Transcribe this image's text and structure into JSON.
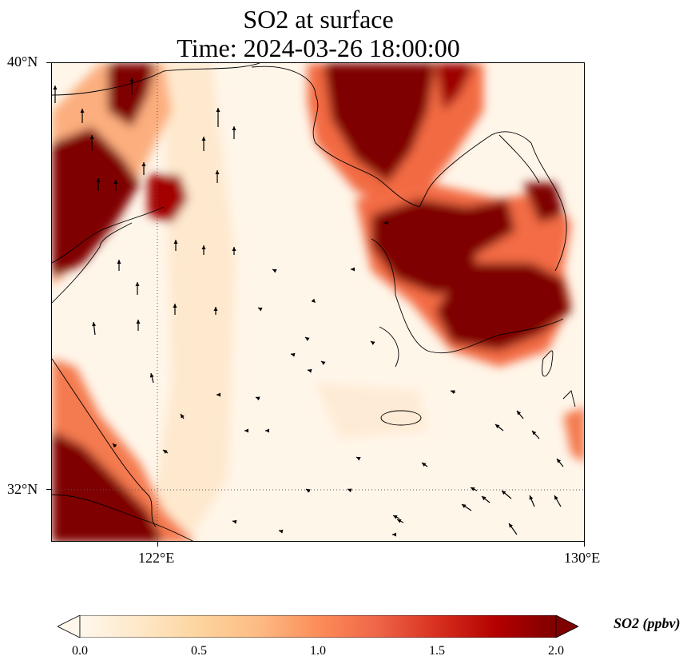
{
  "title": {
    "line1": "SO2 at surface",
    "line2": "Time: 2024-03-26 18:00:00"
  },
  "map": {
    "lat_labels": [
      "40°N",
      "32°N"
    ],
    "lon_labels": [
      "122°E",
      "130°E"
    ],
    "lat_range": [
      31,
      40
    ],
    "lon_range": [
      120,
      130
    ],
    "gridlines": "dotted at 122°E and 32°N",
    "field": "SO2 surface concentration, high (>2 ppbv) over eastern China coast (NW, SW corners), northern Korean peninsula / Liaodong, and southern Korean peninsula; low over Yellow Sea",
    "wind_vectors": "shown as black arrows"
  },
  "colorbar": {
    "title": "SO2 (ppbv)",
    "ticks": [
      "0.0",
      "0.5",
      "1.0",
      "1.5",
      "2.0"
    ],
    "range": [
      0,
      2
    ],
    "extend": "both",
    "colormap": "OrRd",
    "colors": [
      "#fff7ec",
      "#fee8c8",
      "#fdd49e",
      "#fdbb84",
      "#fc8d59",
      "#ef6548",
      "#d7301f",
      "#b30000",
      "#7f0000"
    ]
  }
}
